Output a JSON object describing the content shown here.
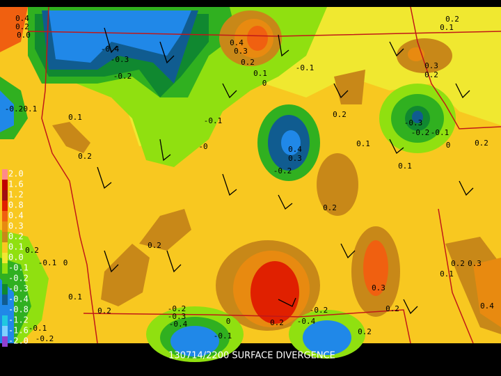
{
  "title": "130714/2200 SURFACE DIVERGENCE",
  "legend": [
    {
      "label": "2.0",
      "color": "#ff8a8a"
    },
    {
      "label": "1.6",
      "color": "#c00000"
    },
    {
      "label": "1.2",
      "color": "#a01010"
    },
    {
      "label": "0.8",
      "color": "#e02000"
    },
    {
      "label": "0.4",
      "color": "#f06010"
    },
    {
      "label": "0.3",
      "color": "#e88a10"
    },
    {
      "label": "0.2",
      "color": "#c88818"
    },
    {
      "label": "0.1",
      "color": "#f8c820"
    },
    {
      "label": "0.0",
      "color": "#f0e830"
    },
    {
      "label": "-0.1",
      "color": "#90e010"
    },
    {
      "label": "-0.2",
      "color": "#30b020"
    },
    {
      "label": "-0.3",
      "color": "#108830"
    },
    {
      "label": "-0.4",
      "color": "#105c90"
    },
    {
      "label": "-0.8",
      "color": "#2088e8"
    },
    {
      "label": "-1.2",
      "color": "#20c8e0"
    },
    {
      "label": "-1.6",
      "color": "#80d0ff"
    },
    {
      "label": "-2.0",
      "color": "#9040d0"
    }
  ],
  "contour_labels": [
    "0.4",
    "0.2",
    "0.0",
    "-0.4",
    "-0.3",
    "-0.2",
    "0.4",
    "0.3",
    "0.2",
    "0.1",
    "0",
    "-0.1",
    "0.2",
    "0.1",
    "0.3",
    "0.2",
    "-0.3",
    "-0.2",
    "-0.1",
    "0",
    "0.2",
    "0.1",
    "0.2",
    "-0.1",
    "-0",
    "0.4",
    "0.3",
    "-0.2",
    "0.2",
    "0.1",
    "0.1",
    "0.2",
    "0.2",
    "0.2",
    "-0.1",
    "0",
    "0.1",
    "0.2",
    "-0.2",
    "-0.3",
    "-0.4",
    "0",
    "-0.1",
    "0.3",
    "0.2",
    "0.2",
    "0.2",
    "0.3",
    "0.1",
    "0.4",
    "-0.2",
    "-0.4",
    "0.2",
    "-0.1",
    "-0.2",
    "-0.2",
    "-0.1"
  ]
}
